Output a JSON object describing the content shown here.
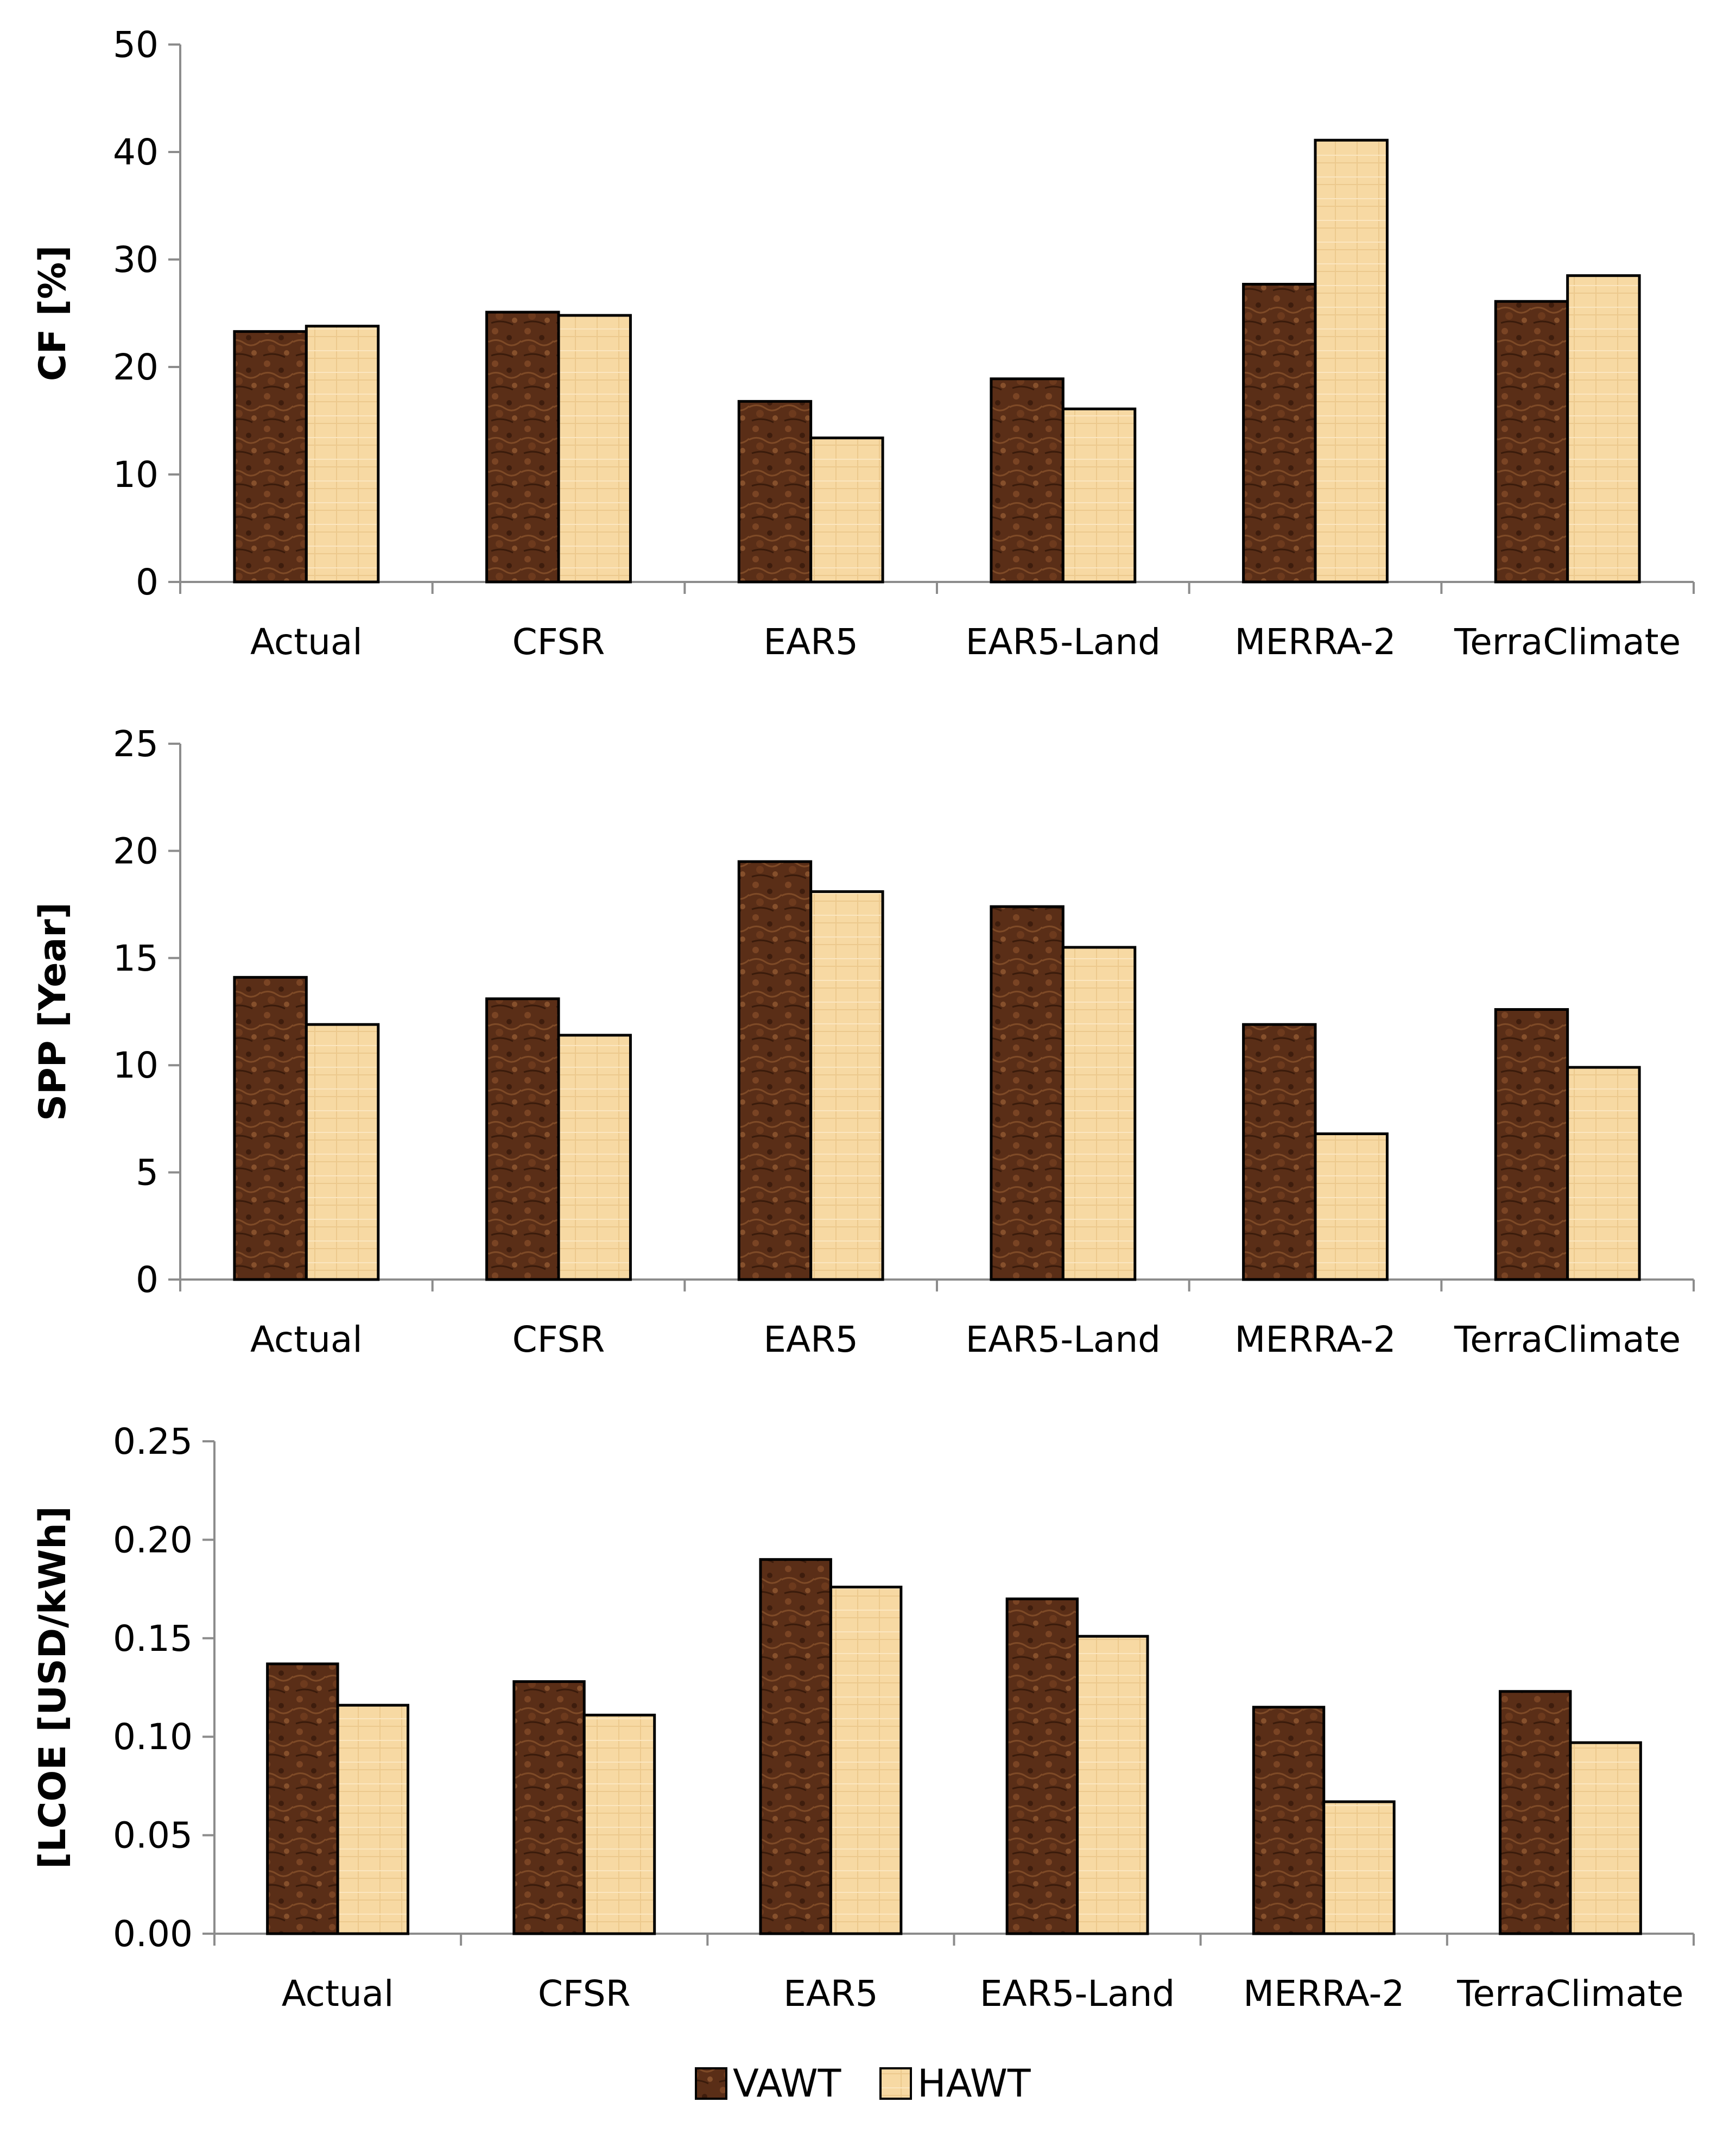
{
  "chart_data": [
    {
      "type": "bar",
      "categories": [
        "Actual",
        "CFSR",
        "EAR5",
        "EAR5-Land",
        "MERRA-2",
        "TerraClimate"
      ],
      "series": [
        {
          "name": "VAWT",
          "values": [
            23.3,
            25.1,
            16.8,
            18.9,
            27.7,
            26.1
          ]
        },
        {
          "name": "HAWT",
          "values": [
            23.8,
            24.8,
            13.4,
            16.1,
            41.1,
            28.5
          ]
        }
      ],
      "ylabel": "CF [%]",
      "ylim": [
        0,
        50
      ],
      "yticks": [
        "0",
        "10",
        "20",
        "30",
        "40",
        "50"
      ],
      "grid": false
    },
    {
      "type": "bar",
      "categories": [
        "Actual",
        "CFSR",
        "EAR5",
        "EAR5-Land",
        "MERRA-2",
        "TerraClimate"
      ],
      "series": [
        {
          "name": "VAWT",
          "values": [
            14.1,
            13.1,
            19.5,
            17.4,
            11.9,
            12.6
          ]
        },
        {
          "name": "HAWT",
          "values": [
            11.9,
            11.4,
            18.1,
            15.5,
            6.8,
            9.9
          ]
        }
      ],
      "ylabel": "SPP [Year]",
      "ylim": [
        0,
        25
      ],
      "yticks": [
        "0",
        "5",
        "10",
        "15",
        "20",
        "25"
      ],
      "grid": false
    },
    {
      "type": "bar",
      "categories": [
        "Actual",
        "CFSR",
        "EAR5",
        "EAR5-Land",
        "MERRA-2",
        "TerraClimate"
      ],
      "series": [
        {
          "name": "VAWT",
          "values": [
            0.137,
            0.128,
            0.19,
            0.17,
            0.115,
            0.123
          ]
        },
        {
          "name": "HAWT",
          "values": [
            0.116,
            0.111,
            0.176,
            0.151,
            0.067,
            0.097
          ]
        }
      ],
      "ylabel": "[LCOE [USD/kWh]",
      "ylim": [
        0,
        0.25
      ],
      "yticks": [
        "0.00",
        "0.05",
        "0.10",
        "0.15",
        "0.20",
        "0.25"
      ],
      "grid": false
    }
  ],
  "legend": {
    "position": "bottom-center",
    "items": [
      {
        "label": "VAWT",
        "color": "#5a2e17"
      },
      {
        "label": "HAWT",
        "color": "#f7d9a3"
      }
    ]
  },
  "colors": {
    "vawt": "#5a2e17",
    "hawt": "#f7d9a3",
    "axis": "#8c8c8c",
    "bar_edge": "#000000"
  }
}
